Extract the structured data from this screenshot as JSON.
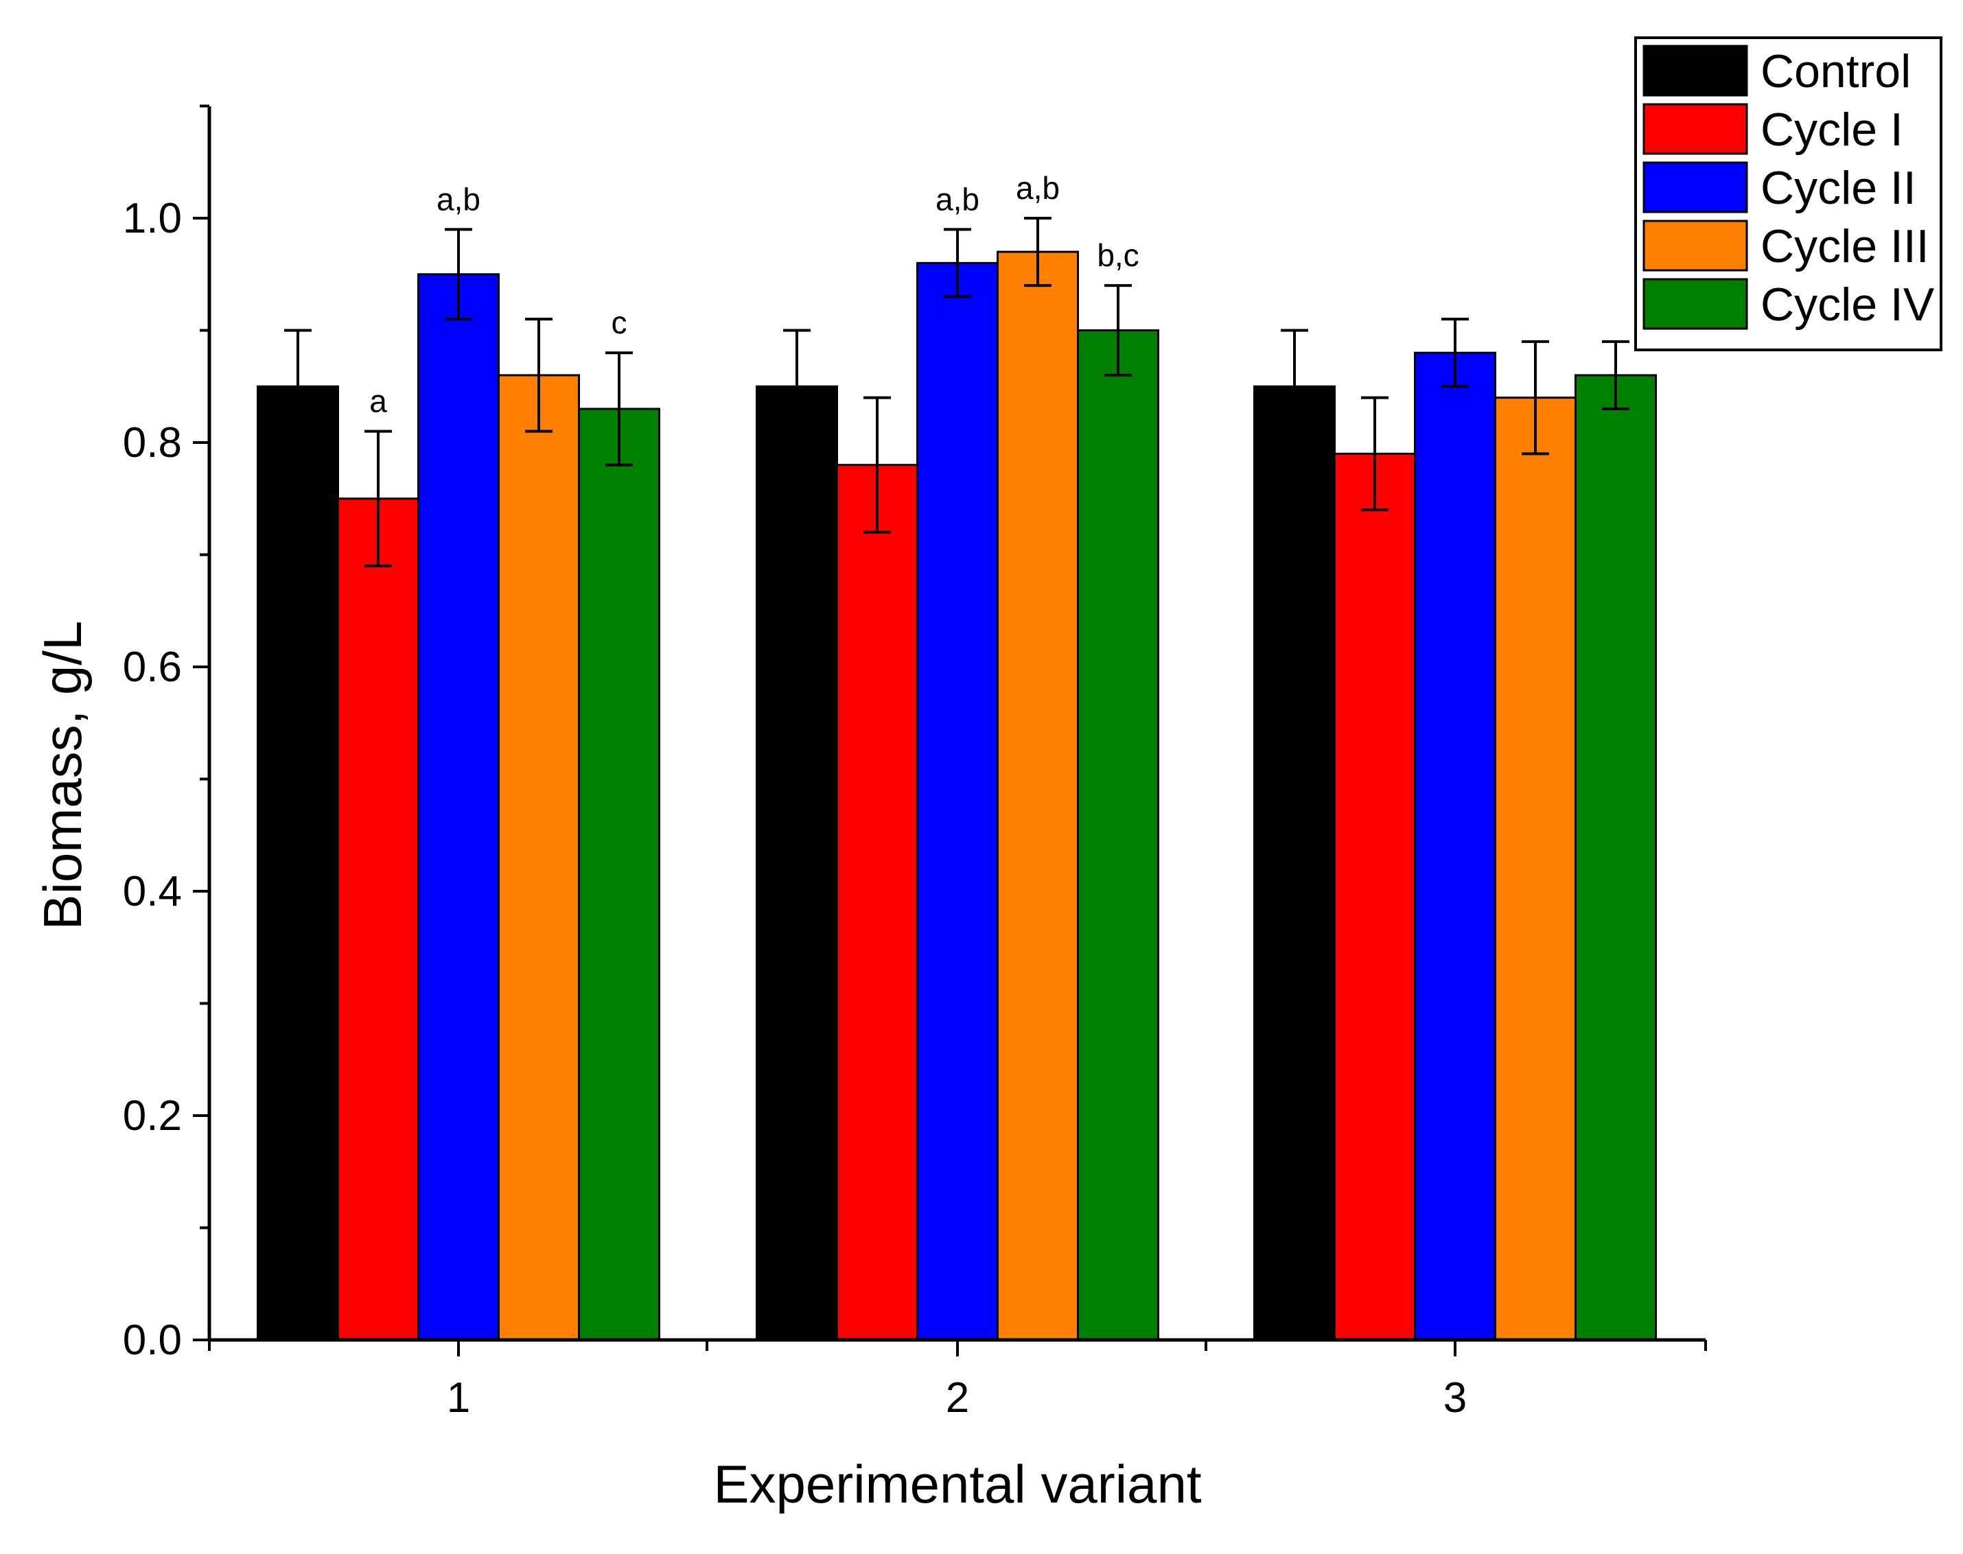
{
  "chart_data": {
    "type": "bar",
    "title": "",
    "xlabel": "Experimental variant",
    "ylabel": "Biomass, g/L",
    "categories": [
      "1",
      "2",
      "3"
    ],
    "ylim": [
      0,
      1.1
    ],
    "yticks": [
      0.0,
      0.2,
      0.4,
      0.6,
      0.8,
      1.0
    ],
    "ytick_labels": [
      "0.0",
      "0.2",
      "0.4",
      "0.6",
      "0.8",
      "1.0"
    ],
    "legend_position": "top-right",
    "grid": false,
    "series": [
      {
        "name": "Control",
        "color": "#000000",
        "values": [
          0.85,
          0.85,
          0.85
        ],
        "errors": [
          0.05,
          0.05,
          0.05
        ],
        "annotations": [
          "",
          "",
          ""
        ]
      },
      {
        "name": "Cycle I",
        "color": "#ff0000",
        "values": [
          0.75,
          0.78,
          0.79
        ],
        "errors": [
          0.06,
          0.06,
          0.05
        ],
        "annotations": [
          "a",
          "",
          ""
        ]
      },
      {
        "name": "Cycle II",
        "color": "#0000ff",
        "values": [
          0.95,
          0.96,
          0.88
        ],
        "errors": [
          0.04,
          0.03,
          0.03
        ],
        "annotations": [
          "a,b",
          "a,b",
          ""
        ]
      },
      {
        "name": "Cycle III",
        "color": "#ff8000",
        "values": [
          0.86,
          0.97,
          0.84
        ],
        "errors": [
          0.05,
          0.03,
          0.05
        ],
        "annotations": [
          "",
          "a,b",
          ""
        ]
      },
      {
        "name": "Cycle IV",
        "color": "#008000",
        "values": [
          0.83,
          0.9,
          0.86
        ],
        "errors": [
          0.05,
          0.04,
          0.03
        ],
        "annotations": [
          "c",
          "b,c",
          ""
        ]
      }
    ]
  }
}
